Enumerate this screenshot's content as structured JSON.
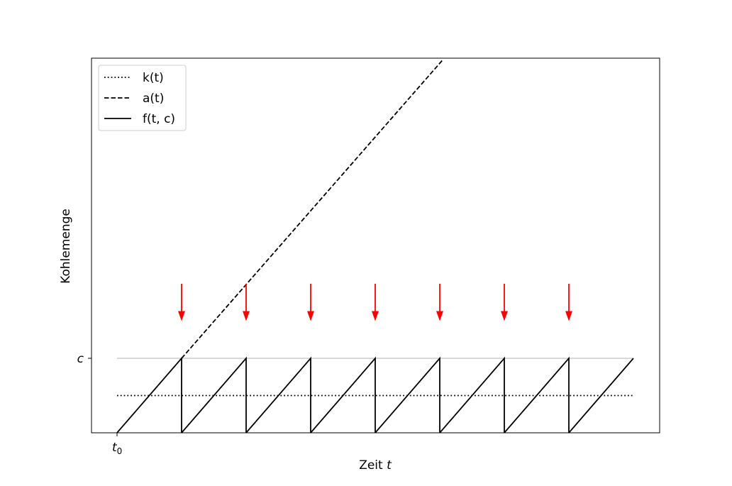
{
  "chart_data": {
    "type": "line",
    "xlabel": "Zeit",
    "xlabel_var": "t",
    "ylabel": "Kohlemenge",
    "x_tick": {
      "base": "t",
      "sub": "0",
      "value": 0
    },
    "y_tick": {
      "label": "c",
      "value": 1
    },
    "xlim": [
      -0.4,
      8.4
    ],
    "ylim": [
      0,
      5
    ],
    "capacity": {
      "value": 1,
      "x": [
        0,
        8
      ],
      "color": "#cccccc"
    },
    "legend": {
      "position": "top-left"
    },
    "series": [
      {
        "name": "k(t)",
        "style": "dotted",
        "x": [
          0,
          8
        ],
        "y": [
          0.5,
          0.5
        ]
      },
      {
        "name": "a(t)",
        "style": "dashed",
        "x": [
          1,
          5.04
        ],
        "y": [
          1,
          5
        ]
      },
      {
        "name": "f(t, c)",
        "style": "solid",
        "period": 1,
        "cycles": 8,
        "y_max": 1
      }
    ],
    "arrows": {
      "color": "#ff0000",
      "x": [
        1,
        2,
        3,
        4,
        5,
        6,
        7
      ],
      "y_top": 2.0,
      "y_bottom": 1.5
    }
  }
}
